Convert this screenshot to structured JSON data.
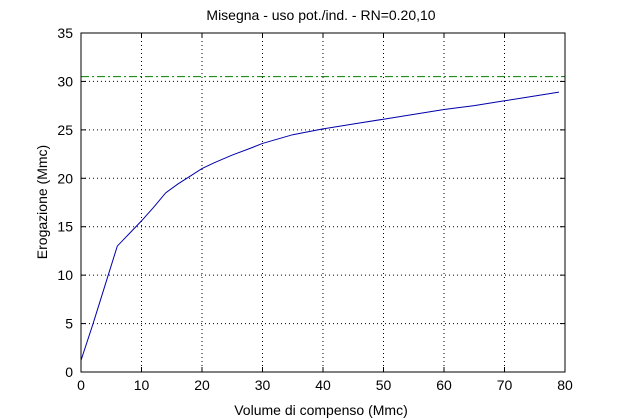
{
  "chart_data": {
    "type": "line",
    "title": "Misegna  -  uso pot./ind.  -   RN=0.20,10",
    "xlabel": "Volume di compenso (Mmc)",
    "ylabel": "Erogazione (Mmc)",
    "xlim": [
      0,
      80
    ],
    "ylim": [
      0,
      35
    ],
    "xticks": [
      0,
      10,
      20,
      30,
      40,
      50,
      60,
      70,
      80
    ],
    "yticks": [
      0,
      5,
      10,
      15,
      20,
      25,
      30,
      35
    ],
    "grid": true,
    "series": [
      {
        "color": "#0000aa",
        "style": "solid",
        "x": [
          0,
          2,
          4,
          6,
          8,
          10,
          12,
          14,
          16,
          18,
          20,
          22,
          25,
          28,
          30,
          35,
          40,
          45,
          50,
          55,
          60,
          65,
          70,
          75,
          79
        ],
        "y": [
          1.2,
          5.0,
          9.0,
          13.0,
          14.3,
          15.6,
          17.0,
          18.5,
          19.4,
          20.2,
          21.0,
          21.6,
          22.4,
          23.1,
          23.6,
          24.5,
          25.1,
          25.6,
          26.1,
          26.6,
          27.1,
          27.5,
          28.0,
          28.5,
          28.9
        ]
      },
      {
        "color": "#008000",
        "style": "dashdot",
        "x": [
          0,
          80
        ],
        "y": [
          30.5,
          30.5
        ]
      }
    ]
  }
}
